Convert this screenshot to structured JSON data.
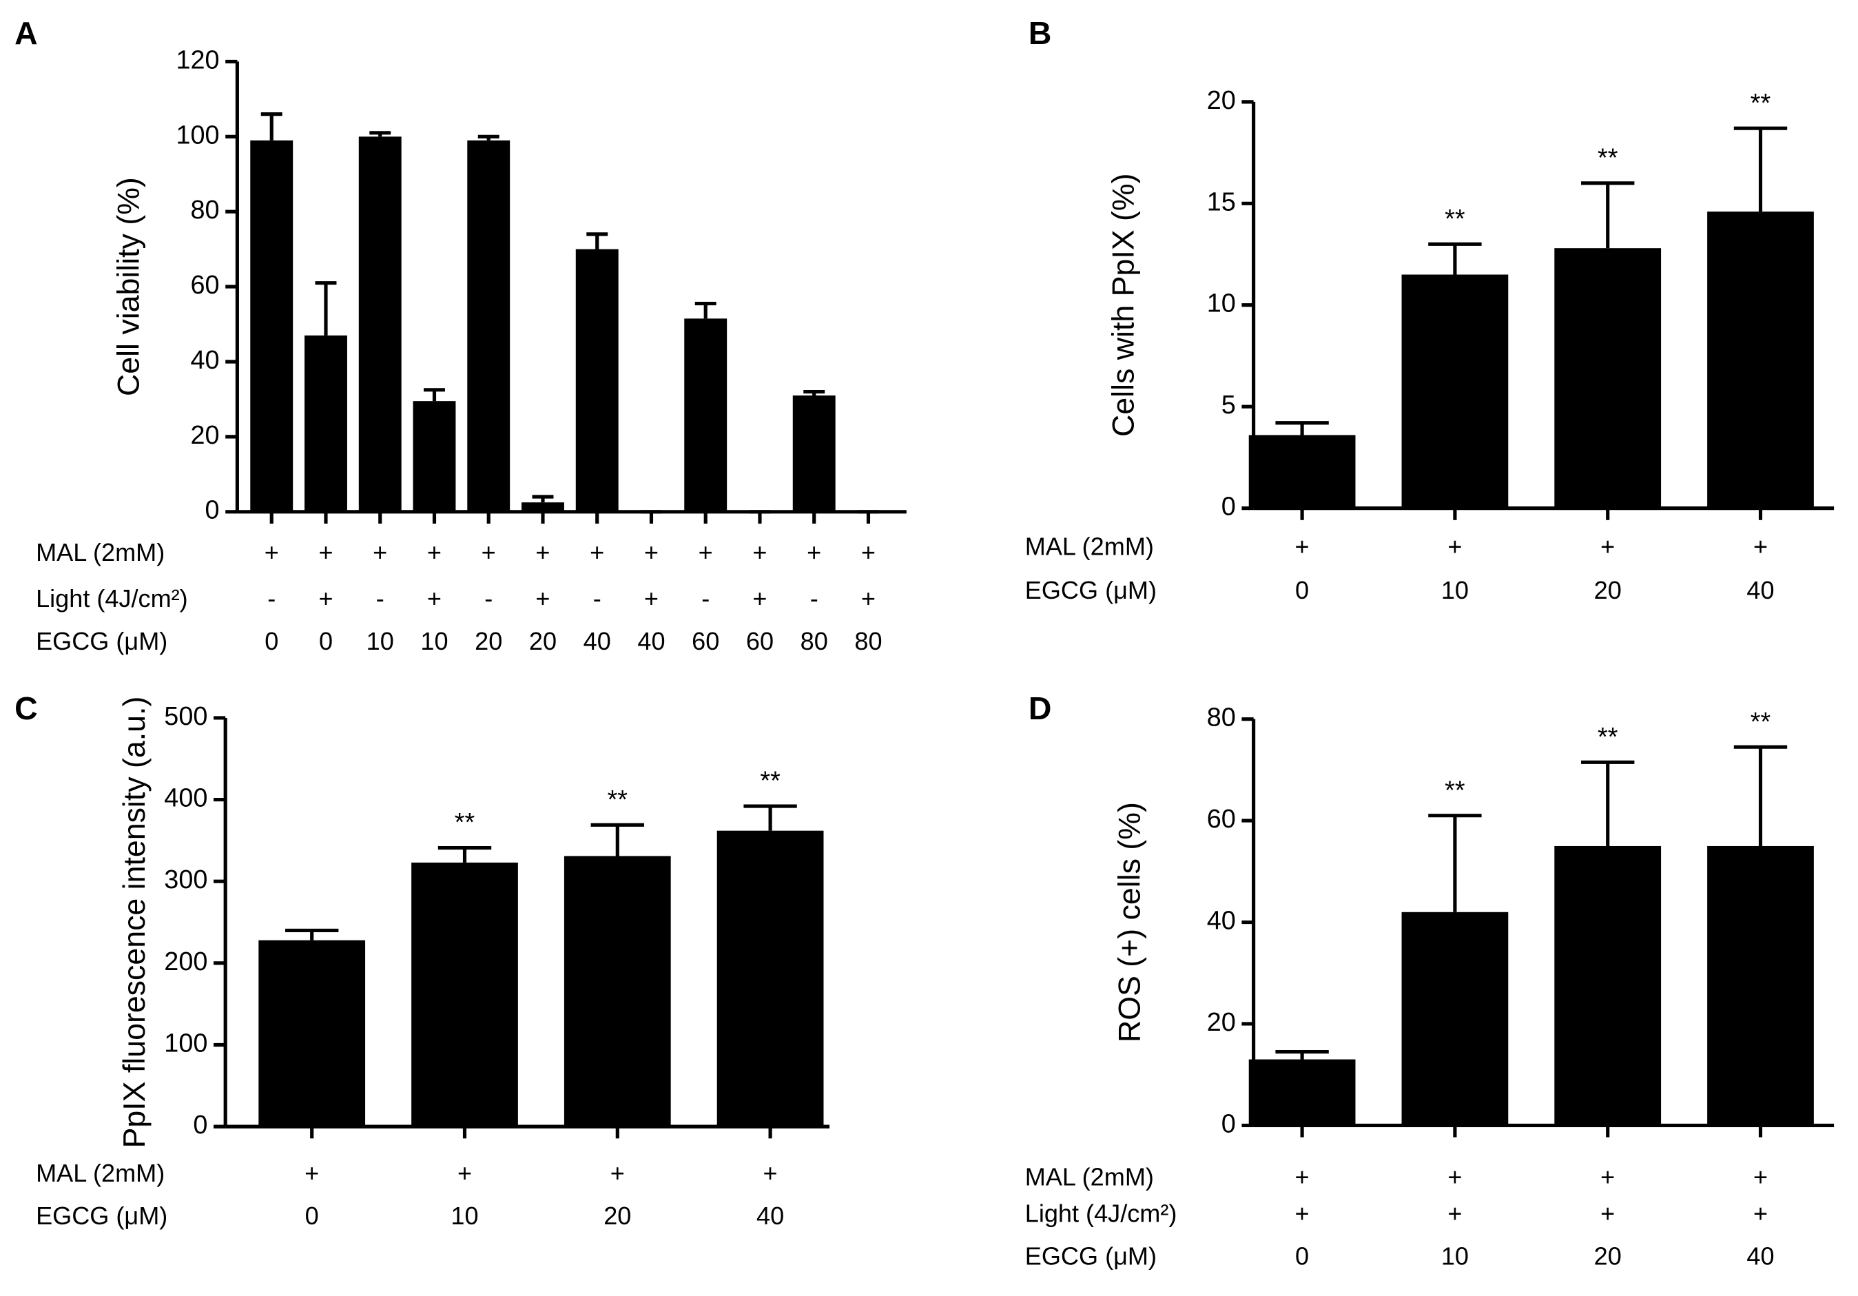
{
  "chart_data": [
    {
      "panel": "A",
      "type": "bar",
      "ylabel": "Cell viability (%)",
      "ylim": [
        0,
        120
      ],
      "yticks": [
        0,
        20,
        40,
        60,
        80,
        100,
        120
      ],
      "color": "#000000",
      "values": [
        99,
        47,
        100,
        29.5,
        99,
        2.5,
        70,
        0,
        51.5,
        0,
        31,
        0
      ],
      "errors": [
        7,
        14,
        1,
        3,
        1,
        1.5,
        4,
        0,
        4,
        0,
        1,
        0
      ],
      "conditions": [
        {
          "label": "MAL (2mM)",
          "values": [
            "+",
            "+",
            "+",
            "+",
            "+",
            "+",
            "+",
            "+",
            "+",
            "+",
            "+",
            "+"
          ]
        },
        {
          "label": "Light (4J/cm²)",
          "values": [
            "-",
            "+",
            "-",
            "+",
            "-",
            "+",
            "-",
            "+",
            "-",
            "+",
            "-",
            "+"
          ]
        },
        {
          "label": "EGCG (μM)",
          "values": [
            "0",
            "0",
            "10",
            "10",
            "20",
            "20",
            "40",
            "40",
            "60",
            "60",
            "80",
            "80"
          ]
        }
      ]
    },
    {
      "panel": "B",
      "type": "bar",
      "ylabel": "Cells with PpIX (%)",
      "ylim": [
        0,
        20
      ],
      "yticks": [
        0,
        5,
        10,
        15,
        20
      ],
      "color": "#000000",
      "values": [
        3.6,
        11.5,
        12.8,
        14.6
      ],
      "errors": [
        0.6,
        1.5,
        3.2,
        4.1
      ],
      "annotations": [
        null,
        "**",
        "**",
        "**"
      ],
      "conditions": [
        {
          "label": "MAL (2mM)",
          "values": [
            "+",
            "+",
            "+",
            "+"
          ]
        },
        {
          "label": "EGCG (μM)",
          "values": [
            "0",
            "10",
            "20",
            "40"
          ]
        }
      ]
    },
    {
      "panel": "C",
      "type": "bar",
      "ylabel": "PpIX fluorescence intensity (a.u.)",
      "ylim": [
        0,
        500
      ],
      "yticks": [
        0,
        100,
        200,
        300,
        400,
        500
      ],
      "color": "#000000",
      "values": [
        228,
        323,
        331,
        362
      ],
      "errors": [
        12,
        18,
        38,
        30
      ],
      "annotations": [
        null,
        "**",
        "**",
        "**"
      ],
      "conditions": [
        {
          "label": "MAL (2mM)",
          "values": [
            "+",
            "+",
            "+",
            "+"
          ]
        },
        {
          "label": "EGCG (μM)",
          "values": [
            "0",
            "10",
            "20",
            "40"
          ]
        }
      ]
    },
    {
      "panel": "D",
      "type": "bar",
      "ylabel": "ROS (+) cells (%)",
      "ylim": [
        0,
        80
      ],
      "yticks": [
        0,
        20,
        40,
        60,
        80
      ],
      "color": "#000000",
      "values": [
        13,
        42,
        55,
        55
      ],
      "errors": [
        1.5,
        19,
        16.5,
        19.5
      ],
      "annotations": [
        null,
        "**",
        "**",
        "**"
      ],
      "conditions": [
        {
          "label": "MAL (2mM)",
          "values": [
            "+",
            "+",
            "+",
            "+"
          ]
        },
        {
          "label": "Light (4J/cm²)",
          "values": [
            "+",
            "+",
            "+",
            "+"
          ]
        },
        {
          "label": "EGCG (μM)",
          "values": [
            "0",
            "10",
            "20",
            "40"
          ]
        }
      ]
    }
  ]
}
